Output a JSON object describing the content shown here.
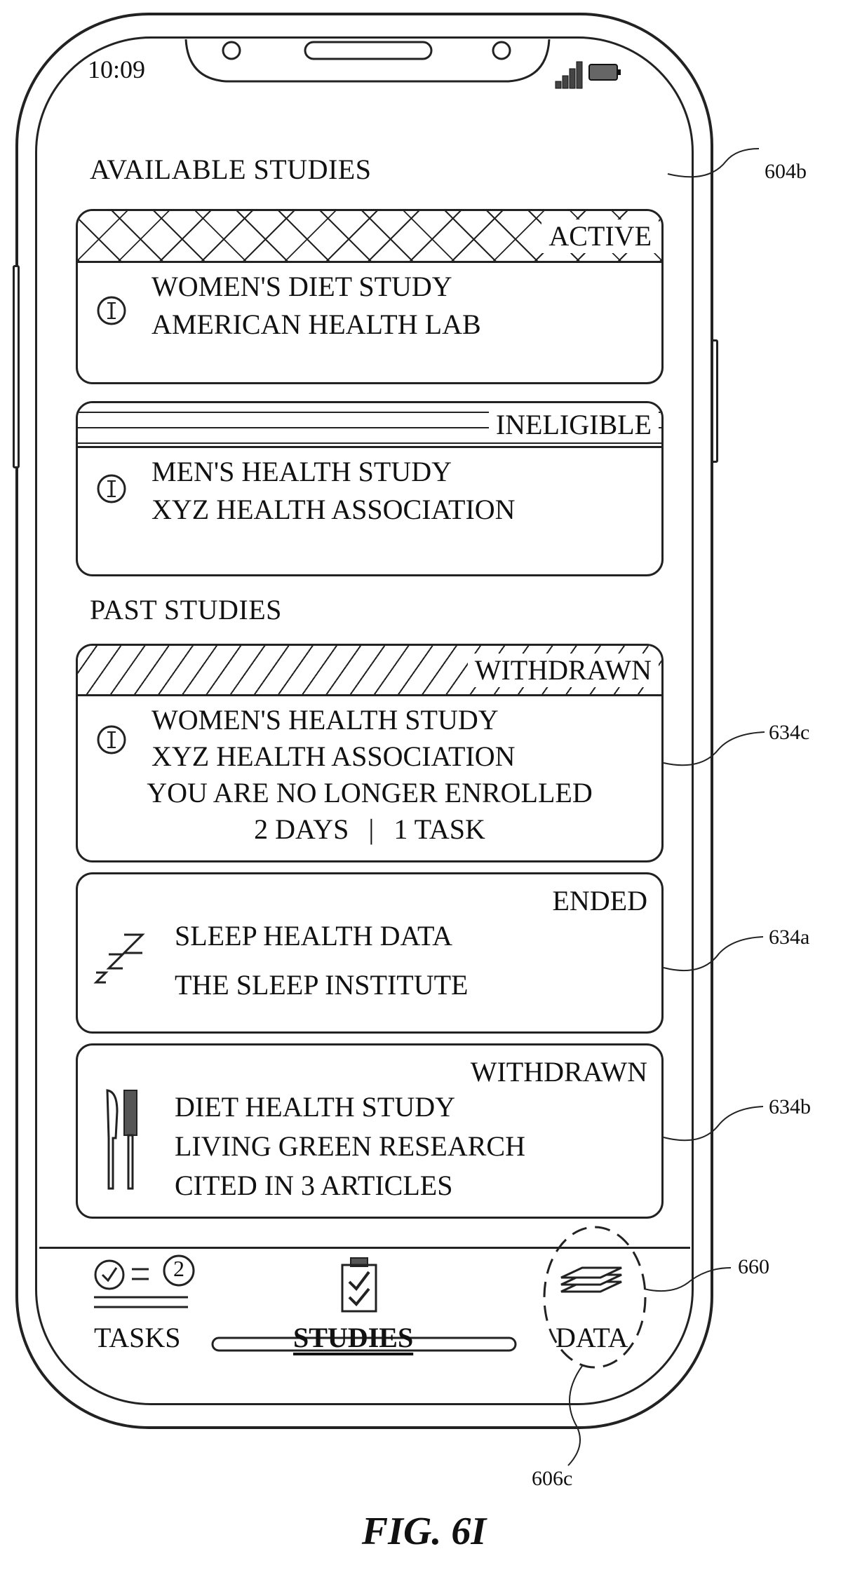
{
  "status_bar": {
    "time": "10:09"
  },
  "available": {
    "title": "AVAILABLE STUDIES",
    "cards": [
      {
        "status": "ACTIVE",
        "line1": "WOMEN'S DIET STUDY",
        "line2": "AMERICAN HEALTH LAB",
        "icon": "info-icon"
      },
      {
        "status": "INELIGIBLE",
        "line1": "MEN'S HEALTH STUDY",
        "line2": "XYZ HEALTH ASSOCIATION",
        "icon": "info-icon"
      }
    ]
  },
  "past": {
    "title": "PAST STUDIES",
    "cards": [
      {
        "status": "WITHDRAWN",
        "line1": "WOMEN'S HEALTH STUDY",
        "line2": "XYZ HEALTH ASSOCIATION",
        "line3": "YOU ARE NO LONGER ENROLLED",
        "meta_days": "2 DAYS",
        "meta_sep": "|",
        "meta_tasks": "1 TASK",
        "icon": "info-icon"
      },
      {
        "status": "ENDED",
        "line1": "SLEEP HEALTH DATA",
        "line2": "THE SLEEP INSTITUTE",
        "icon": "sleep-zzz-icon"
      },
      {
        "status": "WITHDRAWN",
        "line1": "DIET HEALTH STUDY",
        "line2": "LIVING GREEN RESEARCH",
        "line3": "CITED IN 3 ARTICLES",
        "icon": "knife-fork-icon"
      }
    ]
  },
  "tabs": [
    {
      "label": "TASKS",
      "badge": "2",
      "icon": "tasks-checklist-icon",
      "selected": false
    },
    {
      "label": "STUDIES",
      "icon": "studies-clipboard-icon",
      "selected": true
    },
    {
      "label": "DATA",
      "icon": "data-layers-icon",
      "selected": false
    }
  ],
  "reference_labels": {
    "screen": "604b",
    "card_withdrawn": "634c",
    "card_ended": "634a",
    "card_diet": "634b",
    "data_icon": "660",
    "data_tab": "606c"
  },
  "figure_caption": "FIG. 6I"
}
